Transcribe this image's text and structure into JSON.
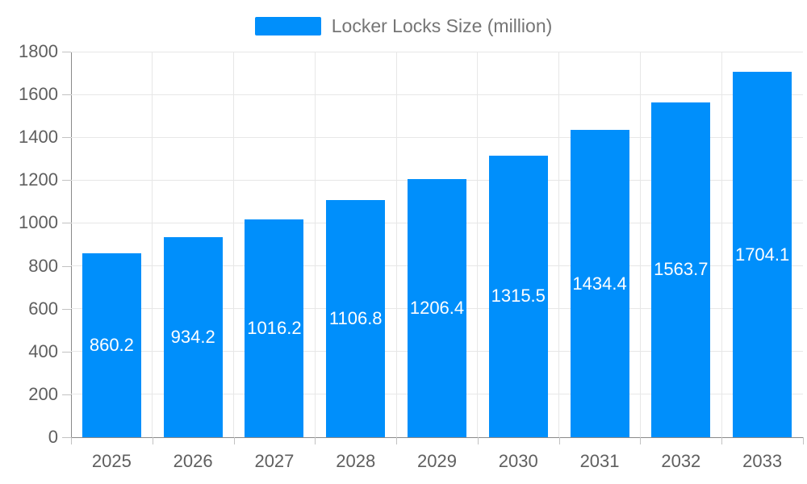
{
  "legend": {
    "label": "Locker Locks Size (million)",
    "marker_color": "#008FFB"
  },
  "chart_data": {
    "type": "bar",
    "title": "Locker Locks Size (million)",
    "categories": [
      "2025",
      "2026",
      "2027",
      "2028",
      "2029",
      "2030",
      "2031",
      "2032",
      "2033"
    ],
    "series": [
      {
        "name": "Locker Locks Size (million)",
        "values": [
          860.2,
          934.2,
          1016.2,
          1106.8,
          1206.4,
          1315.5,
          1434.4,
          1563.7,
          1704.1
        ]
      }
    ],
    "data_labels": [
      "860.2",
      "934.2",
      "1016.2",
      "1106.8",
      "1206.4",
      "1315.5",
      "1434.4",
      "1563.7",
      "1704.1"
    ],
    "xlabel": "",
    "ylabel": "",
    "ylim": [
      0,
      1800
    ],
    "ytick_step": 200,
    "ytick_labels": [
      "0",
      "200",
      "400",
      "600",
      "800",
      "1000",
      "1200",
      "1400",
      "1600",
      "1800"
    ],
    "grid": true,
    "legend_position": "top",
    "colors": {
      "bar": "#008FFB",
      "data_label": "#FFFFFF",
      "axis_label": "#5F5F5F",
      "legend_text": "#757575",
      "gridline": "#E7E7E7",
      "axis_line": "#8A8A8A",
      "tick": "#C2C2C2"
    }
  }
}
